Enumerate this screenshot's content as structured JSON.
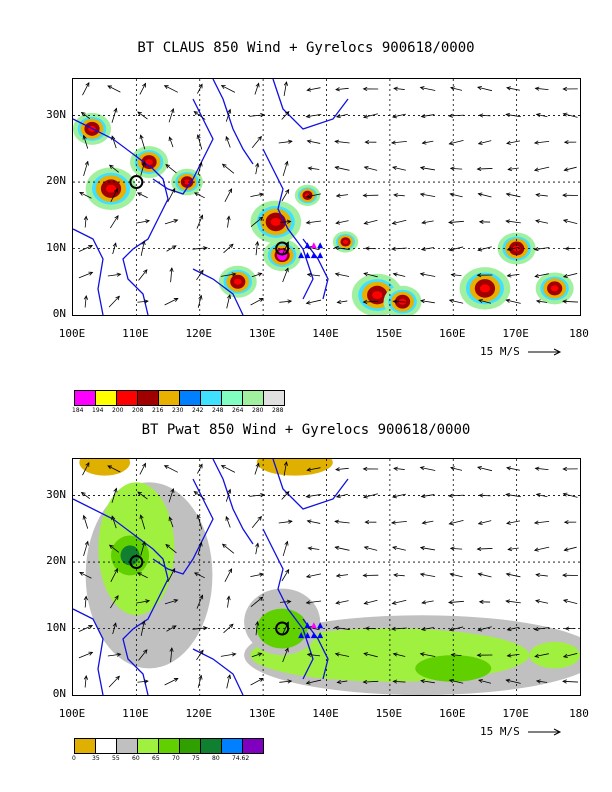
{
  "panels": [
    {
      "title": "BT CLAUS 850 Wind + Gyrelocs 900618/0000",
      "lat_labels": [
        "30N",
        "20N",
        "10N",
        "0N"
      ],
      "lon_labels": [
        "100E",
        "110E",
        "120E",
        "130E",
        "140E",
        "150E",
        "160E",
        "170E",
        "180"
      ],
      "vector_scale": "15 M/S",
      "legend": {
        "colors": [
          "#ff00ff",
          "#ffff00",
          "#ff0000",
          "#a00000",
          "#e8b000",
          "#0080ff",
          "#40e0ff",
          "#80ffc0",
          "#a0f0a0",
          "#e0e0e0"
        ],
        "labels": [
          "184",
          "194",
          "200",
          "208",
          "216",
          "230",
          "242",
          "248",
          "264",
          "280",
          "288"
        ]
      }
    },
    {
      "title": "BT Pwat 850 Wind + Gyrelocs 900618/0000",
      "lat_labels": [
        "30N",
        "20N",
        "10N",
        "0N"
      ],
      "lon_labels": [
        "100E",
        "110E",
        "120E",
        "130E",
        "140E",
        "150E",
        "160E",
        "170E",
        "180"
      ],
      "vector_scale": "15 M/S",
      "legend": {
        "colors": [
          "#e0b000",
          "#ffffff",
          "#c0c0c0",
          "#a0f040",
          "#60d000",
          "#30a000",
          "#108030",
          "#0080ff",
          "#8000c0"
        ],
        "labels": [
          "0",
          "35",
          "55",
          "60",
          "65",
          "70",
          "75",
          "80",
          "74.62"
        ]
      }
    }
  ]
}
